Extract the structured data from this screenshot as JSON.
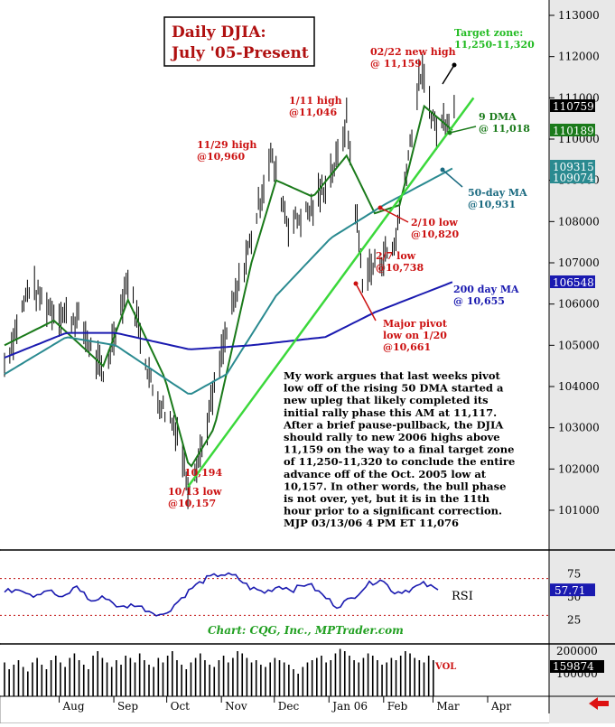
{
  "chart_data": [
    {
      "type": "line",
      "panel": "price",
      "title_lines": [
        "Daily DJIA:",
        "July '05-Present"
      ],
      "y_ticks": [
        101000,
        102000,
        103000,
        104000,
        105000,
        106000,
        107000,
        108000,
        109000,
        110000,
        111000,
        112000,
        113000
      ],
      "x_ticks": [
        "Aug",
        "Sep",
        "Oct",
        "Nov",
        "Dec",
        "Jan 06",
        "Feb",
        "Mar",
        "Apr"
      ],
      "y_scale_note": "price labels are DJIA x 10",
      "series": [
        {
          "name": "DJIA",
          "kind": "daily-bars",
          "color": "#000000",
          "x": [
            "2005-07-01",
            "2005-07-15",
            "2005-07-29",
            "2005-08-12",
            "2005-08-26",
            "2005-09-09",
            "2005-09-23",
            "2005-10-07",
            "2005-10-13",
            "2005-10-21",
            "2005-11-04",
            "2005-11-18",
            "2005-11-29",
            "2005-12-09",
            "2005-12-23",
            "2006-01-06",
            "2006-01-11",
            "2006-01-20",
            "2006-02-07",
            "2006-02-10",
            "2006-02-22",
            "2006-03-03",
            "2006-03-13"
          ],
          "y": [
            10450,
            10640,
            10580,
            10560,
            10420,
            10660,
            10390,
            10290,
            10157,
            10250,
            10530,
            10760,
            10960,
            10790,
            10830,
            10950,
            11046,
            10661,
            10738,
            10820,
            11159,
            11020,
            11076
          ]
        },
        {
          "name": "9 DMA",
          "kind": "line",
          "color": "#1a7a1a",
          "x": [
            "2005-07-01",
            "2005-07-29",
            "2005-08-26",
            "2005-09-09",
            "2005-09-30",
            "2005-10-14",
            "2005-10-28",
            "2005-11-18",
            "2005-12-02",
            "2005-12-23",
            "2006-01-11",
            "2006-01-27",
            "2006-02-10",
            "2006-02-24",
            "2006-03-13"
          ],
          "y": [
            10500,
            10560,
            10450,
            10610,
            10420,
            10200,
            10300,
            10700,
            10900,
            10860,
            10960,
            10820,
            10840,
            11080,
            11018
          ]
        },
        {
          "name": "50-day MA",
          "kind": "line",
          "color": "#2a8a90",
          "x": [
            "2005-07-01",
            "2005-08-05",
            "2005-09-02",
            "2005-10-14",
            "2005-11-04",
            "2005-12-02",
            "2006-01-02",
            "2006-02-01",
            "2006-03-13"
          ],
          "y": [
            10430,
            10520,
            10500,
            10380,
            10430,
            10620,
            10760,
            10840,
            10931
          ]
        },
        {
          "name": "200 day MA",
          "kind": "line",
          "color": "#1a1ab0",
          "x": [
            "2005-07-01",
            "2005-08-05",
            "2005-09-02",
            "2005-10-14",
            "2005-11-18",
            "2005-12-30",
            "2006-01-27",
            "2006-03-13"
          ],
          "y": [
            10470,
            10530,
            10530,
            10490,
            10500,
            10520,
            10580,
            10655
          ]
        },
        {
          "name": "uptrend line",
          "kind": "line",
          "color": "#3bd83b",
          "x": [
            "2005-10-13",
            "2006-03-24"
          ],
          "y": [
            10157,
            11100
          ]
        }
      ],
      "price_tags": [
        {
          "value": "110759",
          "bg": "#000000",
          "fg": "#ffffff"
        },
        {
          "value": "110189",
          "bg": "#1a7a1a",
          "fg": "#ffffff"
        },
        {
          "value": "109315",
          "bg": "#2a8a90",
          "fg": "#ffffff"
        },
        {
          "value": "109074",
          "bg": "#2a8a90",
          "fg": "#ffffff"
        },
        {
          "value": "106548",
          "bg": "#1a1ab0",
          "fg": "#ffffff"
        }
      ],
      "annotations": [
        {
          "lines": [
            "Target zone:",
            "11,250-11,320"
          ],
          "color": "#22bb22"
        },
        {
          "lines": [
            "02/22 new high",
            "@ 11,159"
          ],
          "color": "#cc1111"
        },
        {
          "lines": [
            "1/11 high",
            "@11,046"
          ],
          "color": "#cc1111"
        },
        {
          "lines": [
            "11/29 high",
            "@10,960"
          ],
          "color": "#cc1111"
        },
        {
          "lines": [
            "9 DMA",
            "@ 11,018"
          ],
          "color": "#1a7a1a"
        },
        {
          "lines": [
            "50-day MA",
            "@10,931"
          ],
          "color": "#1a6a80"
        },
        {
          "lines": [
            "2/10 low",
            "@10,820"
          ],
          "color": "#cc1111"
        },
        {
          "lines": [
            "2/7 low",
            "@10,738"
          ],
          "color": "#cc1111"
        },
        {
          "lines": [
            "200 day MA",
            "@ 10,655"
          ],
          "color": "#1a1ab0"
        },
        {
          "lines": [
            "Major pivot",
            "low on 1/20",
            "@10,661"
          ],
          "color": "#cc1111"
        },
        {
          "lines": [
            "10,194"
          ],
          "color": "#cc1111"
        },
        {
          "lines": [
            "10/13 low",
            "@10,157"
          ],
          "color": "#cc1111"
        }
      ],
      "commentary_lines": [
        "My work argues that last weeks pivot",
        "low off of the rising 50 DMA started a",
        "new upleg that likely completed its",
        "initial rally phase this AM at 11,117.",
        "After a brief pause-pullback, the DJIA",
        "should rally to new 2006 highs above",
        "11,159 on the way to a final target zone",
        "of 11,250-11,320 to conclude the entire",
        "advance off of the Oct. 2005 low at",
        "10,157. In other words, the bull phase",
        "is not over, yet, but it is in the 11th",
        "hour prior to a significant correction.",
        "MJP  03/13/06 4 PM ET 11,076"
      ]
    },
    {
      "type": "line",
      "panel": "rsi",
      "label": "RSI",
      "y_ticks": [
        25,
        50,
        75
      ],
      "levels": [
        30,
        70
      ],
      "current_tag": "57.71",
      "color": "#1a1ab0",
      "values": [
        55,
        60,
        52,
        58,
        48,
        62,
        45,
        50,
        38,
        42,
        35,
        30,
        45,
        60,
        70,
        75,
        72,
        60,
        55,
        62,
        58,
        65,
        52,
        40,
        48,
        62,
        70,
        55,
        58,
        64,
        57.71
      ]
    },
    {
      "type": "bar",
      "panel": "volume",
      "label": "VOL",
      "y_ticks": [
        100000,
        200000
      ],
      "current_tag": "159874",
      "values": [
        150,
        120,
        140,
        160,
        130,
        110,
        150,
        170,
        140,
        120,
        160,
        180,
        150,
        130,
        170,
        190,
        160,
        140,
        120,
        180,
        200,
        170,
        150,
        130,
        160,
        140,
        180,
        170,
        150,
        190,
        160,
        140,
        130,
        170,
        150,
        180,
        200,
        160,
        140,
        120,
        150,
        170,
        190,
        160,
        140,
        130,
        160,
        180,
        150,
        170,
        200,
        190,
        170,
        150,
        160,
        140,
        130,
        150,
        170,
        160,
        150,
        140,
        120,
        100,
        130,
        150,
        160,
        170,
        180,
        150,
        160,
        190,
        210,
        200,
        180,
        160,
        150,
        170,
        190,
        180,
        160,
        140,
        150,
        170,
        160,
        180,
        200,
        190,
        170,
        160,
        150,
        180,
        160
      ]
    }
  ],
  "credit": "Chart: CQG, Inc., MPTrader.com",
  "nav": {
    "arrow_icon": "left-arrow-icon",
    "arrow_color": "#dd1111"
  }
}
